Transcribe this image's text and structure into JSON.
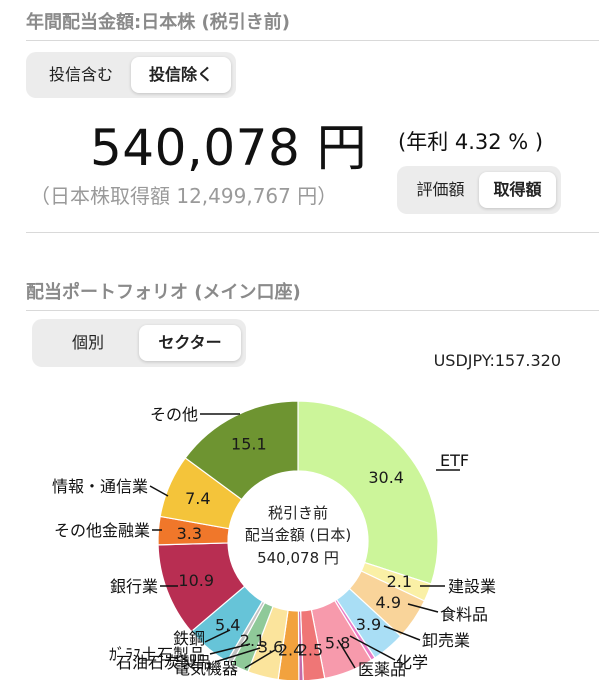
{
  "header": {
    "title": "年間配当金額:日本株 (税引き前)"
  },
  "fund_toggle": {
    "options": [
      "投信含む",
      "投信除く"
    ],
    "selected": 1
  },
  "summary": {
    "amount": "540,078 円",
    "rate": "(年利 4.32 % )",
    "cost": "（日本株取得額 12,499,767 円）"
  },
  "value_toggle": {
    "options": [
      "評価額",
      "取得額"
    ],
    "selected": 1
  },
  "portfolio": {
    "title": "配当ポートフォリオ (メイン口座)"
  },
  "view_toggle": {
    "options": [
      "個別",
      "セクター"
    ],
    "selected": 1
  },
  "fx": "USDJPY:157.320",
  "donut_center": {
    "line1": "税引き前",
    "line2": "配当金額 (日本)",
    "line3": "540,078 円"
  },
  "chart_data": {
    "type": "pie",
    "unit": "%",
    "slices": [
      {
        "name": "ETF",
        "value": 30.4,
        "label": "30.4",
        "color": "#ccf59a"
      },
      {
        "name": "建設業",
        "value": 2.1,
        "label": "2.1",
        "color": "#faf0a6"
      },
      {
        "name": "食料品",
        "value": 4.9,
        "label": "4.9",
        "color": "#f9d49a"
      },
      {
        "name": "卸売業",
        "value": 3.9,
        "label": "3.9",
        "color": "#a9def5"
      },
      {
        "name": "化学",
        "value": 0.5,
        "label": "",
        "color": "#e97cc6"
      },
      {
        "name": "医薬品",
        "value": 5.8,
        "label": "5.8",
        "color": "#f79aac"
      },
      {
        "name": "",
        "value": 2.5,
        "label": "2.5",
        "color": "#ef7676"
      },
      {
        "name": "",
        "value": 0.5,
        "label": "",
        "color": "#c46aa8"
      },
      {
        "name": "",
        "value": 2.4,
        "label": "2.4",
        "color": "#f2a23e"
      },
      {
        "name": "電気機器",
        "value": 3.6,
        "label": "3.6",
        "color": "#fbe49c"
      },
      {
        "name": "石油石炭製品",
        "value": 2.1,
        "label": "2.1",
        "color": "#8fc999"
      },
      {
        "name": "ｶﾞﾗｽ土石製品",
        "value": 0.6,
        "label": "",
        "color": "#c3c3c3"
      },
      {
        "name": "鉄鋼",
        "value": 5.4,
        "label": "5.4",
        "color": "#66c4d8"
      },
      {
        "name": "銀行業",
        "value": 10.9,
        "label": "10.9",
        "color": "#b82e52"
      },
      {
        "name": "その他金融業",
        "value": 3.3,
        "label": "3.3",
        "color": "#f0772a"
      },
      {
        "name": "情報・通信業",
        "value": 7.4,
        "label": "7.4",
        "color": "#f4c43a"
      },
      {
        "name": "その他",
        "value": 15.1,
        "label": "15.1",
        "color": "#6e9431"
      }
    ]
  }
}
